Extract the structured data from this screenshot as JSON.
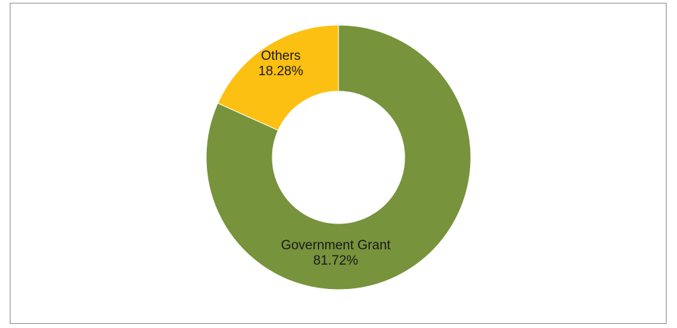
{
  "chart_data": {
    "type": "pie",
    "variant": "donut",
    "title": "",
    "legend": "none",
    "slices": [
      {
        "label": "Government Grant",
        "percent_label": "81.72%",
        "value": 81.72,
        "color": "#77933c"
      },
      {
        "label": "Others",
        "percent_label": "18.28%",
        "value": 18.28,
        "color": "#fcc012"
      }
    ]
  }
}
